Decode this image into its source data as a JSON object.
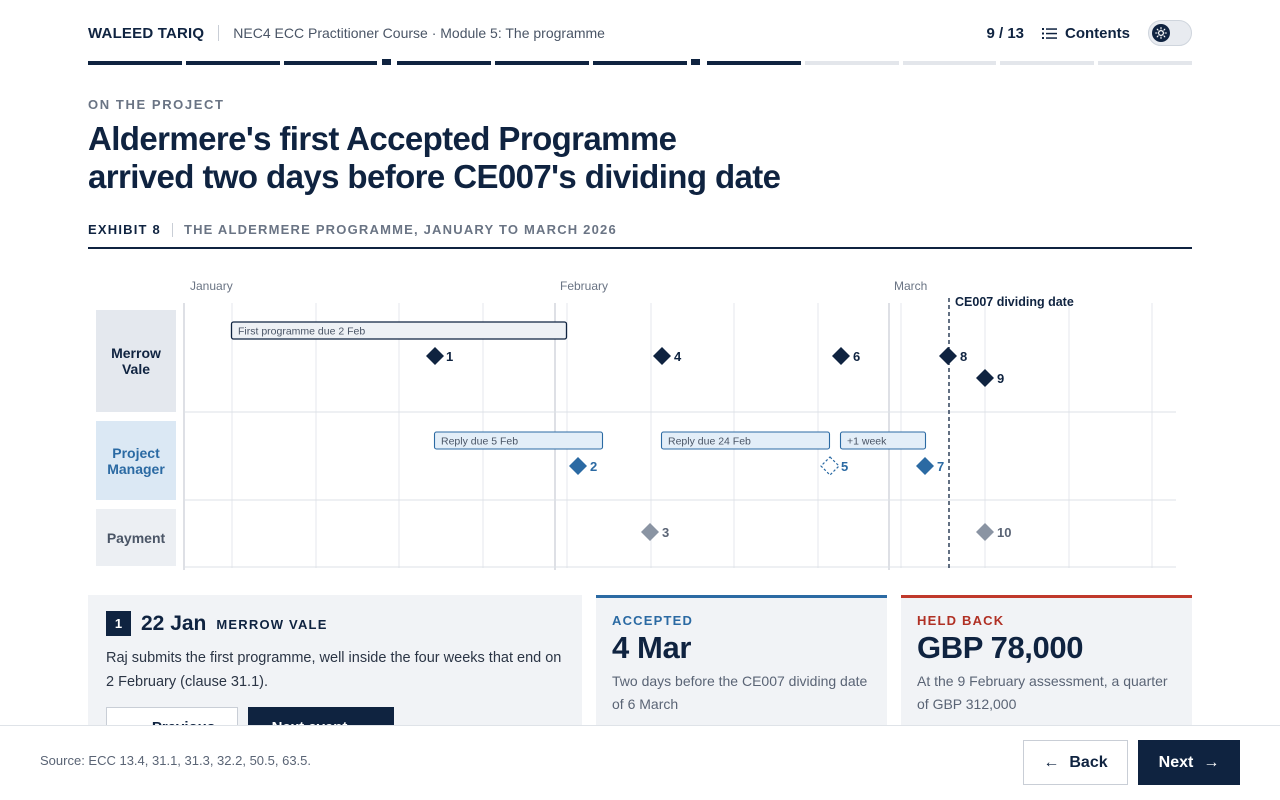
{
  "header": {
    "brand": "WALEED TARIQ",
    "course": "NEC4 ECC Practitioner Course · Module 5: The programme",
    "pager": "9 / 13",
    "contents_label": "Contents"
  },
  "progress": {
    "current": 9,
    "total": 13
  },
  "page": {
    "eyebrow": "ON THE PROJECT",
    "title_line1": "Aldermere's first Accepted Programme",
    "title_line2": "arrived two days before CE007's dividing date",
    "exhibit_num": "EXHIBIT 8",
    "exhibit_caption": "THE ALDERMERE PROGRAMME, JANUARY TO MARCH 2026"
  },
  "chart_data": {
    "type": "timeline",
    "months": [
      "January",
      "February",
      "March"
    ],
    "lanes": [
      "Merrow Vale",
      "Project Manager",
      "Payment"
    ],
    "reference_line": {
      "label": "CE007 dividing date",
      "date": "6 Mar"
    },
    "bars": [
      {
        "lane": "Merrow Vale",
        "label": "First programme due 2 Feb"
      },
      {
        "lane": "Project Manager",
        "label": "Reply due 5 Feb"
      },
      {
        "lane": "Project Manager",
        "label": "Reply due 24 Feb"
      },
      {
        "lane": "Project Manager",
        "label": "+1 week"
      }
    ],
    "events": [
      {
        "n": "1",
        "lane": "Merrow Vale"
      },
      {
        "n": "2",
        "lane": "Project Manager"
      },
      {
        "n": "3",
        "lane": "Payment"
      },
      {
        "n": "4",
        "lane": "Merrow Vale"
      },
      {
        "n": "5",
        "lane": "Project Manager",
        "style": "dashed"
      },
      {
        "n": "6",
        "lane": "Merrow Vale"
      },
      {
        "n": "7",
        "lane": "Project Manager"
      },
      {
        "n": "8",
        "lane": "Merrow Vale"
      },
      {
        "n": "9",
        "lane": "Merrow Vale"
      },
      {
        "n": "10",
        "lane": "Payment"
      }
    ]
  },
  "event_card": {
    "number": "1",
    "date": "22 Jan",
    "party": "MERROW VALE",
    "text": "Raj submits the first programme, well inside the four weeks that end on 2 February (clause 31.1).",
    "prev_label": "Previous",
    "next_label": "Next event"
  },
  "stat_accepted": {
    "label": "ACCEPTED",
    "value": "4 Mar",
    "text": "Two days before the CE007 dividing date of 6 March"
  },
  "stat_held": {
    "label": "HELD BACK",
    "value": "GBP 78,000",
    "text": "At the 9 February assessment, a quarter of GBP 312,000"
  },
  "footer": {
    "source": "Source: ECC 13.4, 31.1, 31.3, 32.2, 50.5, 63.5.",
    "back_label": "Back",
    "next_label": "Next"
  },
  "colors": {
    "navy": "#0f2340",
    "pm_blue": "#2b6aa3",
    "payment_grey": "#8a94a3",
    "held_red": "#c0392b"
  }
}
